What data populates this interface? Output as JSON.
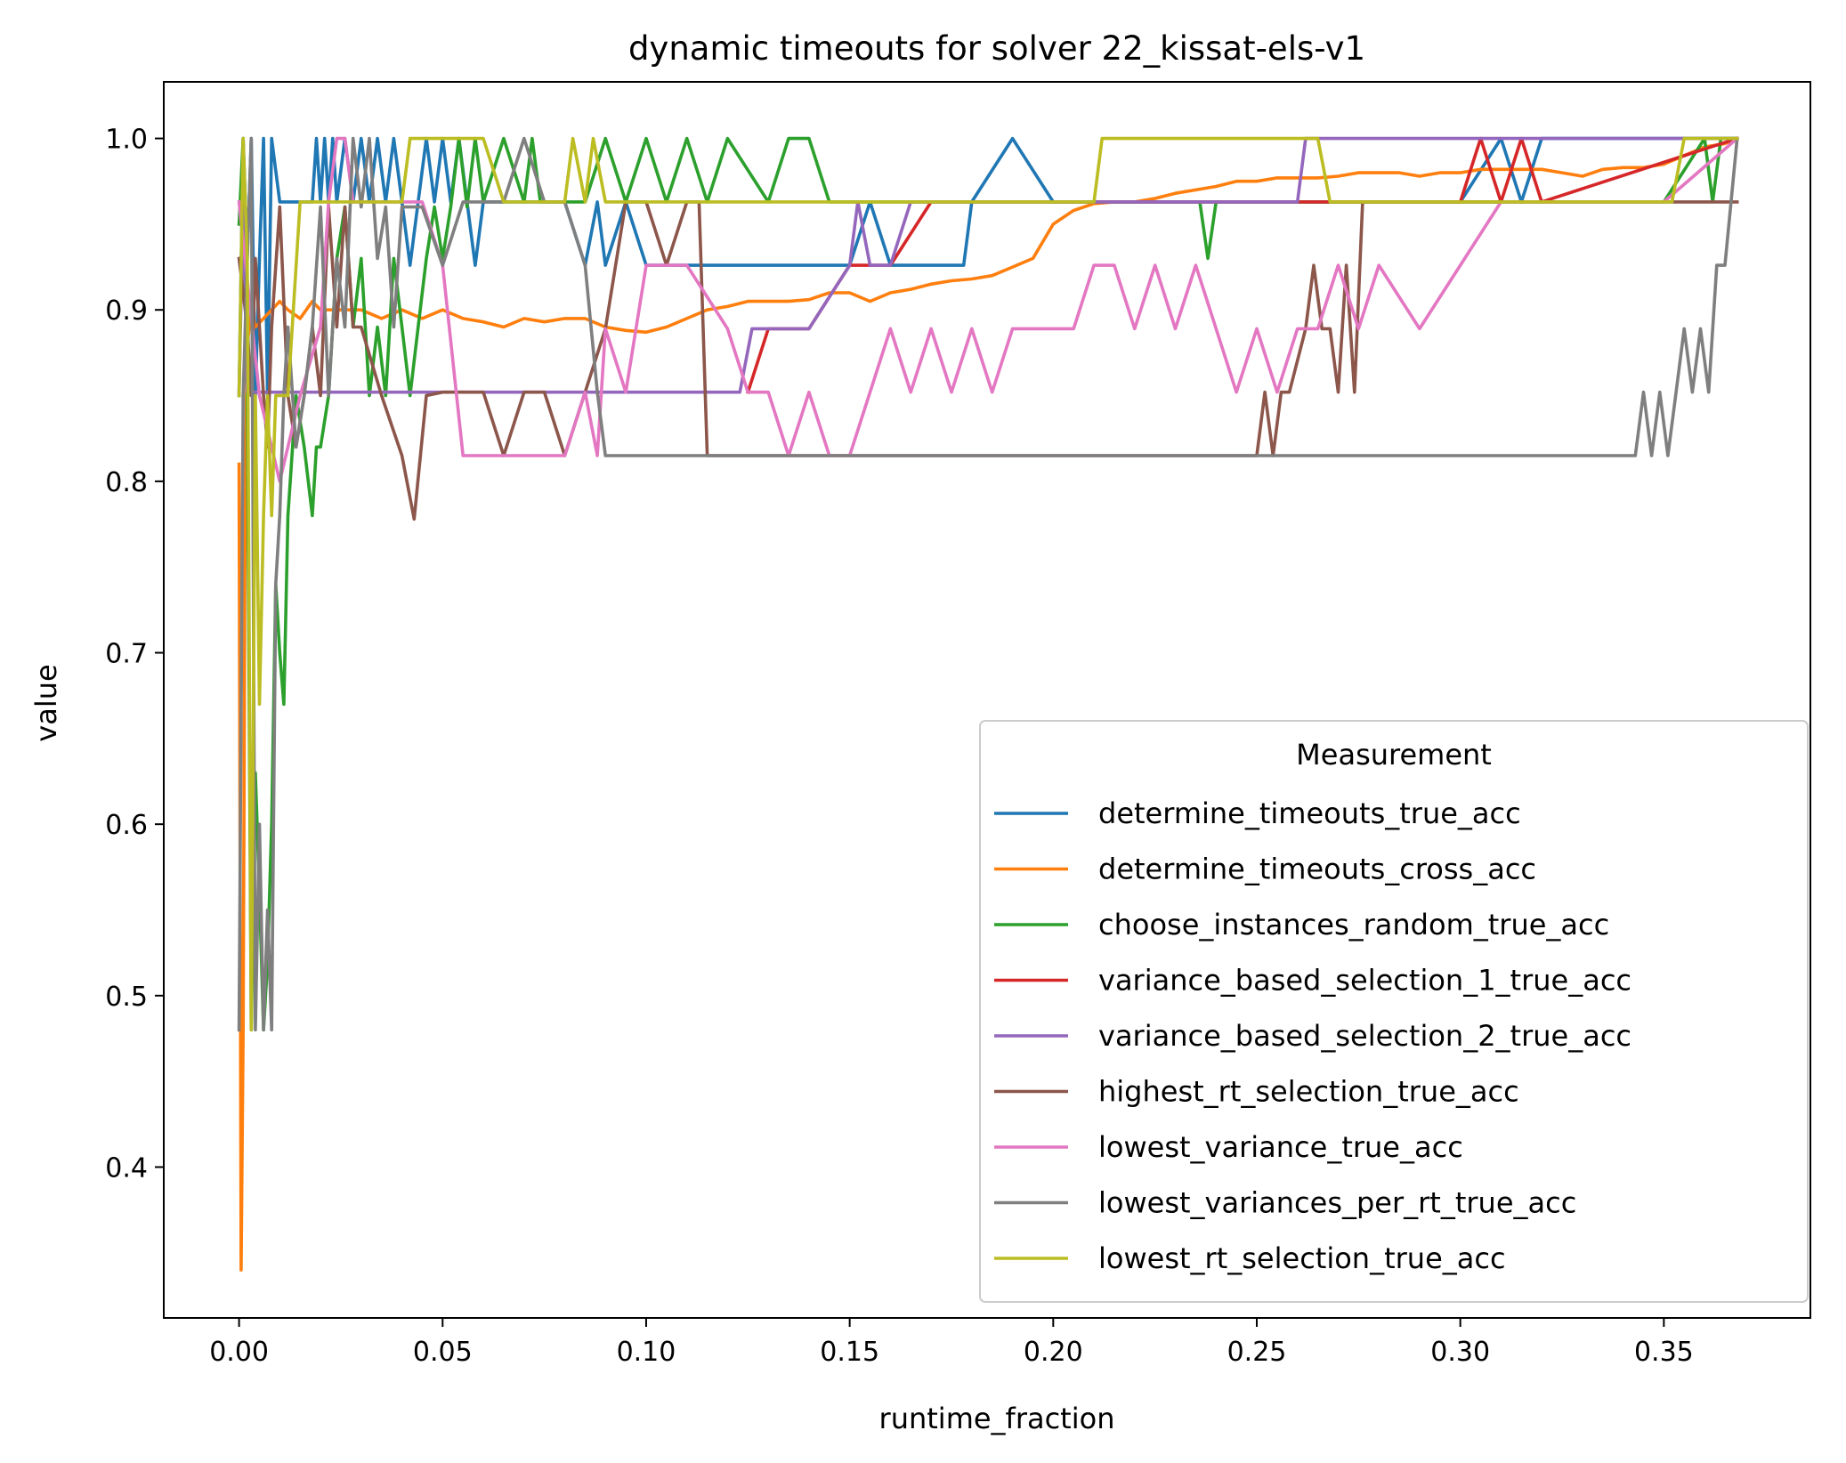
{
  "chart_data": {
    "type": "line",
    "title": "dynamic timeouts for solver 22_kissat-els-v1",
    "xlabel": "runtime_fraction",
    "ylabel": "value",
    "xlim": [
      -0.0185,
      0.386
    ],
    "ylim": [
      0.312,
      1.033
    ],
    "x_ticks": [
      0.0,
      0.05,
      0.1,
      0.15,
      0.2,
      0.25,
      0.3,
      0.35
    ],
    "x_tick_labels": [
      "0.00",
      "0.05",
      "0.10",
      "0.15",
      "0.20",
      "0.25",
      "0.30",
      "0.35"
    ],
    "y_ticks": [
      0.4,
      0.5,
      0.6,
      0.7,
      0.8,
      0.9,
      1.0
    ],
    "y_tick_labels": [
      "0.4",
      "0.5",
      "0.6",
      "0.7",
      "0.8",
      "0.9",
      "1.0"
    ],
    "grid": false,
    "legend": {
      "title": "Measurement",
      "position": "lower-right"
    },
    "series": [
      {
        "name": "determine_timeouts_true_acc",
        "color": "#1f77b4",
        "x": [
          0.0,
          0.001,
          0.002,
          0.003,
          0.004,
          0.005,
          0.006,
          0.007,
          0.008,
          0.01,
          0.018,
          0.019,
          0.02,
          0.021,
          0.022,
          0.023,
          0.024,
          0.026,
          0.028,
          0.03,
          0.032,
          0.034,
          0.036,
          0.038,
          0.04,
          0.042,
          0.044,
          0.046,
          0.048,
          0.05,
          0.052,
          0.054,
          0.056,
          0.058,
          0.06,
          0.08,
          0.085,
          0.088,
          0.09,
          0.095,
          0.1,
          0.11,
          0.115,
          0.12,
          0.14,
          0.15,
          0.155,
          0.16,
          0.165,
          0.17,
          0.178,
          0.18,
          0.19,
          0.2,
          0.3,
          0.31,
          0.315,
          0.32,
          0.35,
          0.36,
          0.368
        ],
        "y": [
          0.85,
          1.0,
          0.93,
          1.0,
          0.85,
          0.93,
          1.0,
          0.85,
          1.0,
          0.963,
          0.963,
          1.0,
          0.963,
          1.0,
          0.963,
          1.0,
          0.963,
          1.0,
          0.963,
          1.0,
          0.963,
          1.0,
          0.963,
          1.0,
          0.963,
          0.926,
          0.963,
          1.0,
          0.963,
          1.0,
          0.963,
          1.0,
          0.963,
          0.926,
          0.963,
          0.963,
          0.926,
          0.963,
          0.926,
          0.963,
          0.926,
          0.926,
          0.926,
          0.926,
          0.926,
          0.926,
          0.963,
          0.926,
          0.926,
          0.926,
          0.926,
          0.963,
          1.0,
          0.963,
          0.963,
          1.0,
          0.963,
          1.0,
          1.0,
          1.0,
          1.0
        ]
      },
      {
        "name": "determine_timeouts_cross_acc",
        "color": "#ff7f0e",
        "x": [
          0.0,
          0.0005,
          0.001,
          0.0015,
          0.002,
          0.003,
          0.004,
          0.006,
          0.008,
          0.01,
          0.012,
          0.015,
          0.018,
          0.02,
          0.025,
          0.03,
          0.035,
          0.04,
          0.045,
          0.05,
          0.055,
          0.06,
          0.065,
          0.07,
          0.075,
          0.08,
          0.085,
          0.09,
          0.095,
          0.1,
          0.105,
          0.11,
          0.115,
          0.12,
          0.125,
          0.13,
          0.135,
          0.14,
          0.145,
          0.15,
          0.155,
          0.16,
          0.165,
          0.17,
          0.175,
          0.18,
          0.185,
          0.19,
          0.195,
          0.2,
          0.205,
          0.21,
          0.215,
          0.22,
          0.225,
          0.23,
          0.235,
          0.24,
          0.245,
          0.25,
          0.255,
          0.26,
          0.265,
          0.27,
          0.275,
          0.28,
          0.285,
          0.29,
          0.295,
          0.3,
          0.305,
          0.31,
          0.315,
          0.32,
          0.325,
          0.33,
          0.335,
          0.34,
          0.345,
          0.35,
          0.355,
          0.36,
          0.365,
          0.368
        ],
        "y": [
          0.81,
          0.34,
          0.48,
          0.8,
          0.88,
          0.9,
          0.89,
          0.895,
          0.9,
          0.905,
          0.9,
          0.895,
          0.905,
          0.9,
          0.9,
          0.9,
          0.895,
          0.9,
          0.895,
          0.9,
          0.895,
          0.893,
          0.89,
          0.895,
          0.893,
          0.895,
          0.895,
          0.89,
          0.888,
          0.887,
          0.89,
          0.895,
          0.9,
          0.902,
          0.905,
          0.905,
          0.905,
          0.906,
          0.91,
          0.91,
          0.905,
          0.91,
          0.912,
          0.915,
          0.917,
          0.918,
          0.92,
          0.925,
          0.93,
          0.95,
          0.958,
          0.962,
          0.963,
          0.963,
          0.965,
          0.968,
          0.97,
          0.972,
          0.975,
          0.975,
          0.977,
          0.977,
          0.977,
          0.978,
          0.98,
          0.98,
          0.98,
          0.978,
          0.98,
          0.98,
          0.982,
          0.982,
          0.982,
          0.982,
          0.98,
          0.978,
          0.982,
          0.983,
          0.983,
          0.985,
          0.99,
          0.995,
          0.997,
          1.0
        ]
      },
      {
        "name": "choose_instances_random_true_acc",
        "color": "#2ca02c",
        "x": [
          0.0,
          0.001,
          0.002,
          0.003,
          0.004,
          0.005,
          0.006,
          0.007,
          0.008,
          0.009,
          0.01,
          0.011,
          0.012,
          0.014,
          0.016,
          0.018,
          0.019,
          0.02,
          0.022,
          0.024,
          0.026,
          0.028,
          0.03,
          0.032,
          0.034,
          0.036,
          0.038,
          0.04,
          0.042,
          0.044,
          0.046,
          0.048,
          0.05,
          0.052,
          0.054,
          0.056,
          0.058,
          0.06,
          0.065,
          0.07,
          0.072,
          0.074,
          0.076,
          0.078,
          0.08,
          0.085,
          0.09,
          0.095,
          0.1,
          0.105,
          0.11,
          0.115,
          0.12,
          0.13,
          0.135,
          0.14,
          0.145,
          0.15,
          0.16,
          0.17,
          0.178,
          0.18,
          0.2,
          0.236,
          0.238,
          0.24,
          0.3,
          0.35,
          0.36,
          0.362,
          0.364,
          0.368
        ],
        "y": [
          0.95,
          1.0,
          0.85,
          0.48,
          0.63,
          0.56,
          0.48,
          0.52,
          0.6,
          0.74,
          0.7,
          0.67,
          0.78,
          0.85,
          0.82,
          0.78,
          0.82,
          0.82,
          0.85,
          0.93,
          0.96,
          0.89,
          0.93,
          0.85,
          0.89,
          0.85,
          0.93,
          0.89,
          0.85,
          0.89,
          0.93,
          0.96,
          0.93,
          0.96,
          1.0,
          0.96,
          1.0,
          0.963,
          1.0,
          0.963,
          1.0,
          0.963,
          0.963,
          0.963,
          0.963,
          0.963,
          1.0,
          0.963,
          1.0,
          0.963,
          1.0,
          0.963,
          1.0,
          0.963,
          1.0,
          1.0,
          0.963,
          0.963,
          0.963,
          0.963,
          0.963,
          0.963,
          0.963,
          0.963,
          0.93,
          0.963,
          0.963,
          0.963,
          1.0,
          0.963,
          1.0,
          1.0
        ]
      },
      {
        "name": "variance_based_selection_1_true_acc",
        "color": "#d62728",
        "x": [
          0.125,
          0.13,
          0.14,
          0.15,
          0.16,
          0.17,
          0.175,
          0.18,
          0.3,
          0.305,
          0.31,
          0.315,
          0.32,
          0.368
        ],
        "y": [
          0.852,
          0.889,
          0.889,
          0.926,
          0.926,
          0.963,
          0.963,
          0.963,
          0.963,
          1.0,
          0.963,
          1.0,
          0.963,
          1.0
        ]
      },
      {
        "name": "variance_based_selection_2_true_acc",
        "color": "#9467bd",
        "x": [
          0.0,
          0.001,
          0.002,
          0.003,
          0.005,
          0.01,
          0.02,
          0.05,
          0.1,
          0.123,
          0.126,
          0.13,
          0.14,
          0.15,
          0.152,
          0.155,
          0.16,
          0.165,
          0.17,
          0.2,
          0.25,
          0.26,
          0.262,
          0.3,
          0.35,
          0.368
        ],
        "y": [
          0.852,
          0.963,
          0.852,
          0.852,
          0.852,
          0.852,
          0.852,
          0.852,
          0.852,
          0.852,
          0.889,
          0.889,
          0.889,
          0.926,
          0.963,
          0.926,
          0.926,
          0.963,
          0.963,
          0.963,
          0.963,
          0.963,
          1.0,
          1.0,
          1.0,
          1.0
        ]
      },
      {
        "name": "highest_rt_selection_true_acc",
        "color": "#8c564b",
        "x": [
          0.0,
          0.002,
          0.003,
          0.004,
          0.005,
          0.006,
          0.007,
          0.008,
          0.01,
          0.012,
          0.014,
          0.016,
          0.018,
          0.02,
          0.022,
          0.024,
          0.026,
          0.028,
          0.03,
          0.035,
          0.04,
          0.043,
          0.046,
          0.05,
          0.06,
          0.065,
          0.07,
          0.075,
          0.08,
          0.085,
          0.09,
          0.095,
          0.1,
          0.105,
          0.11,
          0.113,
          0.115,
          0.12,
          0.25,
          0.252,
          0.254,
          0.256,
          0.258,
          0.262,
          0.264,
          0.266,
          0.268,
          0.27,
          0.272,
          0.274,
          0.276,
          0.28,
          0.3,
          0.35,
          0.368
        ],
        "y": [
          0.93,
          0.89,
          0.85,
          0.93,
          0.89,
          0.85,
          0.82,
          0.89,
          0.96,
          0.85,
          0.82,
          0.85,
          0.89,
          0.85,
          0.96,
          0.89,
          0.96,
          0.89,
          0.89,
          0.85,
          0.815,
          0.778,
          0.85,
          0.852,
          0.852,
          0.815,
          0.852,
          0.852,
          0.815,
          0.852,
          0.889,
          0.963,
          0.963,
          0.926,
          0.963,
          0.963,
          0.815,
          0.815,
          0.815,
          0.852,
          0.815,
          0.852,
          0.852,
          0.889,
          0.926,
          0.889,
          0.889,
          0.852,
          0.926,
          0.852,
          0.963,
          0.963,
          0.963,
          0.963,
          0.963
        ]
      },
      {
        "name": "lowest_variance_true_acc",
        "color": "#e377c2",
        "x": [
          0.0,
          0.005,
          0.01,
          0.015,
          0.02,
          0.022,
          0.024,
          0.026,
          0.028,
          0.03,
          0.035,
          0.04,
          0.045,
          0.05,
          0.055,
          0.06,
          0.065,
          0.08,
          0.085,
          0.088,
          0.09,
          0.095,
          0.1,
          0.105,
          0.11,
          0.12,
          0.125,
          0.13,
          0.135,
          0.14,
          0.145,
          0.15,
          0.155,
          0.16,
          0.165,
          0.17,
          0.175,
          0.18,
          0.185,
          0.19,
          0.195,
          0.2,
          0.205,
          0.21,
          0.215,
          0.22,
          0.225,
          0.23,
          0.235,
          0.24,
          0.245,
          0.25,
          0.255,
          0.26,
          0.265,
          0.27,
          0.275,
          0.28,
          0.29,
          0.3,
          0.31,
          0.35,
          0.368
        ],
        "y": [
          0.963,
          0.85,
          0.8,
          0.85,
          0.89,
          0.963,
          1.0,
          1.0,
          0.963,
          0.963,
          0.963,
          0.963,
          0.963,
          0.926,
          0.815,
          0.815,
          0.815,
          0.815,
          0.852,
          0.815,
          0.889,
          0.852,
          0.926,
          0.926,
          0.926,
          0.889,
          0.852,
          0.852,
          0.815,
          0.852,
          0.815,
          0.815,
          0.852,
          0.889,
          0.852,
          0.889,
          0.852,
          0.889,
          0.852,
          0.889,
          0.889,
          0.889,
          0.889,
          0.926,
          0.926,
          0.889,
          0.926,
          0.889,
          0.926,
          0.889,
          0.852,
          0.889,
          0.852,
          0.889,
          0.889,
          0.926,
          0.889,
          0.926,
          0.889,
          0.926,
          0.963,
          0.963,
          1.0
        ]
      },
      {
        "name": "lowest_variances_per_rt_true_acc",
        "color": "#7f7f7f",
        "x": [
          0.0,
          0.001,
          0.002,
          0.003,
          0.004,
          0.005,
          0.006,
          0.007,
          0.008,
          0.009,
          0.01,
          0.011,
          0.012,
          0.014,
          0.016,
          0.018,
          0.02,
          0.022,
          0.024,
          0.026,
          0.028,
          0.03,
          0.032,
          0.034,
          0.036,
          0.038,
          0.04,
          0.045,
          0.05,
          0.055,
          0.06,
          0.065,
          0.07,
          0.075,
          0.08,
          0.085,
          0.088,
          0.09,
          0.1,
          0.2,
          0.3,
          0.343,
          0.345,
          0.347,
          0.349,
          0.351,
          0.353,
          0.355,
          0.357,
          0.359,
          0.361,
          0.363,
          0.365,
          0.368
        ],
        "y": [
          0.48,
          0.85,
          0.93,
          1.0,
          0.48,
          0.6,
          0.48,
          0.55,
          0.48,
          0.74,
          0.78,
          0.85,
          0.89,
          0.82,
          0.85,
          0.89,
          0.96,
          0.85,
          0.93,
          0.89,
          1.0,
          0.96,
          1.0,
          0.93,
          0.96,
          0.89,
          0.96,
          0.96,
          0.926,
          0.963,
          0.963,
          0.963,
          1.0,
          0.963,
          0.963,
          0.926,
          0.852,
          0.815,
          0.815,
          0.815,
          0.815,
          0.815,
          0.852,
          0.815,
          0.852,
          0.815,
          0.852,
          0.889,
          0.852,
          0.889,
          0.852,
          0.926,
          0.926,
          1.0
        ]
      },
      {
        "name": "lowest_rt_selection_true_acc",
        "color": "#bcbd22",
        "x": [
          0.0,
          0.001,
          0.002,
          0.003,
          0.004,
          0.005,
          0.006,
          0.007,
          0.008,
          0.009,
          0.01,
          0.012,
          0.015,
          0.02,
          0.04,
          0.042,
          0.045,
          0.06,
          0.065,
          0.08,
          0.082,
          0.085,
          0.087,
          0.09,
          0.1,
          0.2,
          0.21,
          0.212,
          0.26,
          0.265,
          0.268,
          0.3,
          0.35,
          0.352,
          0.355,
          0.368
        ],
        "y": [
          0.85,
          1.0,
          0.93,
          0.48,
          0.85,
          0.67,
          0.78,
          0.85,
          0.78,
          0.85,
          0.85,
          0.85,
          0.963,
          0.963,
          0.963,
          1.0,
          1.0,
          1.0,
          0.963,
          0.963,
          1.0,
          0.963,
          1.0,
          0.963,
          0.963,
          0.963,
          0.963,
          1.0,
          1.0,
          1.0,
          0.963,
          0.963,
          0.963,
          0.963,
          1.0,
          1.0
        ]
      }
    ]
  }
}
